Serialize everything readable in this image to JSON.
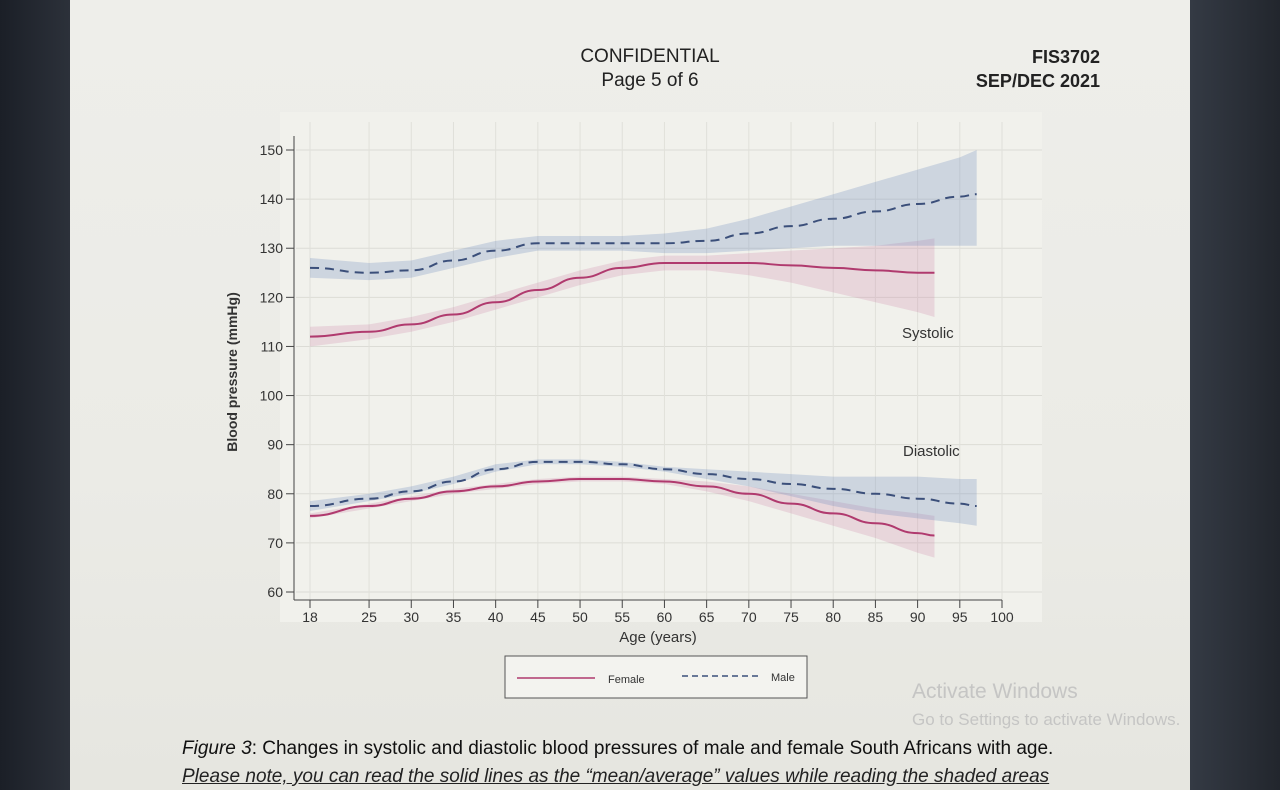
{
  "header": {
    "confidential": "CONFIDENTIAL",
    "page": "Page 5 of 6",
    "code": "FIS3702",
    "date": "SEP/DEC 2021"
  },
  "chart_data": {
    "type": "line",
    "xlabel": "Age (years)",
    "ylabel": "Blood pressure (mmHg)",
    "xlim": [
      18,
      100
    ],
    "ylim": [
      60,
      150
    ],
    "x_ticks": [
      18,
      25,
      30,
      35,
      40,
      45,
      50,
      55,
      60,
      65,
      70,
      75,
      80,
      85,
      90,
      95,
      100
    ],
    "y_ticks": [
      60,
      70,
      80,
      90,
      100,
      110,
      120,
      130,
      140,
      150
    ],
    "annotations": [
      "Systolic",
      "Diastolic"
    ],
    "legend": [
      "Female",
      "Male"
    ],
    "series": [
      {
        "name": "Female Systolic",
        "group": "Female",
        "style": "solid",
        "color": "#b03a6e",
        "x": [
          18,
          25,
          30,
          35,
          40,
          45,
          50,
          55,
          60,
          65,
          70,
          75,
          80,
          85,
          90,
          92
        ],
        "y": [
          112,
          113,
          114.5,
          116.5,
          119,
          121.5,
          124,
          126,
          127,
          127,
          127,
          126.5,
          126,
          125.5,
          125,
          125
        ],
        "lower": [
          110,
          111.5,
          113,
          115,
          117.5,
          120,
          122.5,
          124.5,
          125.5,
          125.5,
          124.5,
          123,
          121,
          119,
          117,
          116
        ],
        "upper": [
          114,
          114.5,
          116,
          118,
          120.5,
          123,
          125.5,
          127.5,
          128.5,
          128.5,
          129,
          129.5,
          130,
          130.5,
          131.5,
          132
        ]
      },
      {
        "name": "Male Systolic",
        "group": "Male",
        "style": "dashed",
        "color": "#3b4f7a",
        "x": [
          18,
          25,
          30,
          35,
          40,
          45,
          50,
          55,
          60,
          65,
          70,
          75,
          80,
          85,
          90,
          95,
          97
        ],
        "y": [
          126,
          125,
          125.5,
          127.5,
          129.5,
          131,
          131,
          131,
          131,
          131.5,
          133,
          134.5,
          136,
          137.5,
          139,
          140.5,
          141
        ],
        "lower": [
          124,
          123.5,
          124,
          126,
          128,
          129.5,
          129.5,
          129.5,
          129,
          129,
          129.5,
          130,
          130.5,
          130.5,
          130.5,
          130.5,
          130.5
        ],
        "upper": [
          128,
          127,
          127.5,
          129.5,
          131.5,
          132.5,
          132.5,
          132.5,
          133,
          134,
          136,
          138.5,
          141,
          143.5,
          146,
          148.5,
          150
        ]
      },
      {
        "name": "Female Diastolic",
        "group": "Female",
        "style": "solid",
        "color": "#b03a6e",
        "x": [
          18,
          25,
          30,
          35,
          40,
          45,
          50,
          55,
          60,
          65,
          70,
          75,
          80,
          85,
          90,
          92
        ],
        "y": [
          75.5,
          77.5,
          79,
          80.5,
          81.5,
          82.5,
          83,
          83,
          82.5,
          81.5,
          80,
          78,
          76,
          74,
          72,
          71.5
        ],
        "lower": [
          75,
          77,
          78.5,
          80,
          81,
          82,
          82.5,
          82.5,
          82,
          80.5,
          78.5,
          76,
          73.5,
          71,
          68,
          67
        ],
        "upper": [
          76,
          78,
          79.5,
          81,
          82,
          83,
          83.5,
          83.5,
          83,
          82.5,
          81.5,
          80,
          78.5,
          77,
          76,
          75.5
        ]
      },
      {
        "name": "Male Diastolic",
        "group": "Male",
        "style": "dashed",
        "color": "#3b4f7a",
        "x": [
          18,
          25,
          30,
          35,
          40,
          45,
          50,
          55,
          60,
          65,
          70,
          75,
          80,
          85,
          90,
          95,
          97
        ],
        "y": [
          77.5,
          79,
          80.5,
          82.5,
          85,
          86.5,
          86.5,
          86,
          85,
          84,
          83,
          82,
          81,
          80,
          79,
          78,
          77.5
        ],
        "lower": [
          76.5,
          78.5,
          80,
          82,
          84.5,
          86,
          86,
          85.5,
          84.5,
          83,
          81.5,
          79.5,
          77.5,
          76,
          75,
          74,
          73.5
        ],
        "upper": [
          78.5,
          80,
          81.5,
          83.5,
          86,
          87,
          87,
          86.5,
          85.5,
          85,
          84.5,
          84,
          83.5,
          83.5,
          83.5,
          83,
          83
        ]
      }
    ]
  },
  "caption": {
    "figure_label": "Figure 3",
    "text": ": Changes in systolic and diastolic blood pressures of male and female South Africans with age."
  },
  "note": "Please note, you can read the solid lines as the “mean/average” values while reading the shaded areas",
  "watermark": {
    "line1": "Activate Windows",
    "line2": "Go to Settings to activate Windows."
  }
}
